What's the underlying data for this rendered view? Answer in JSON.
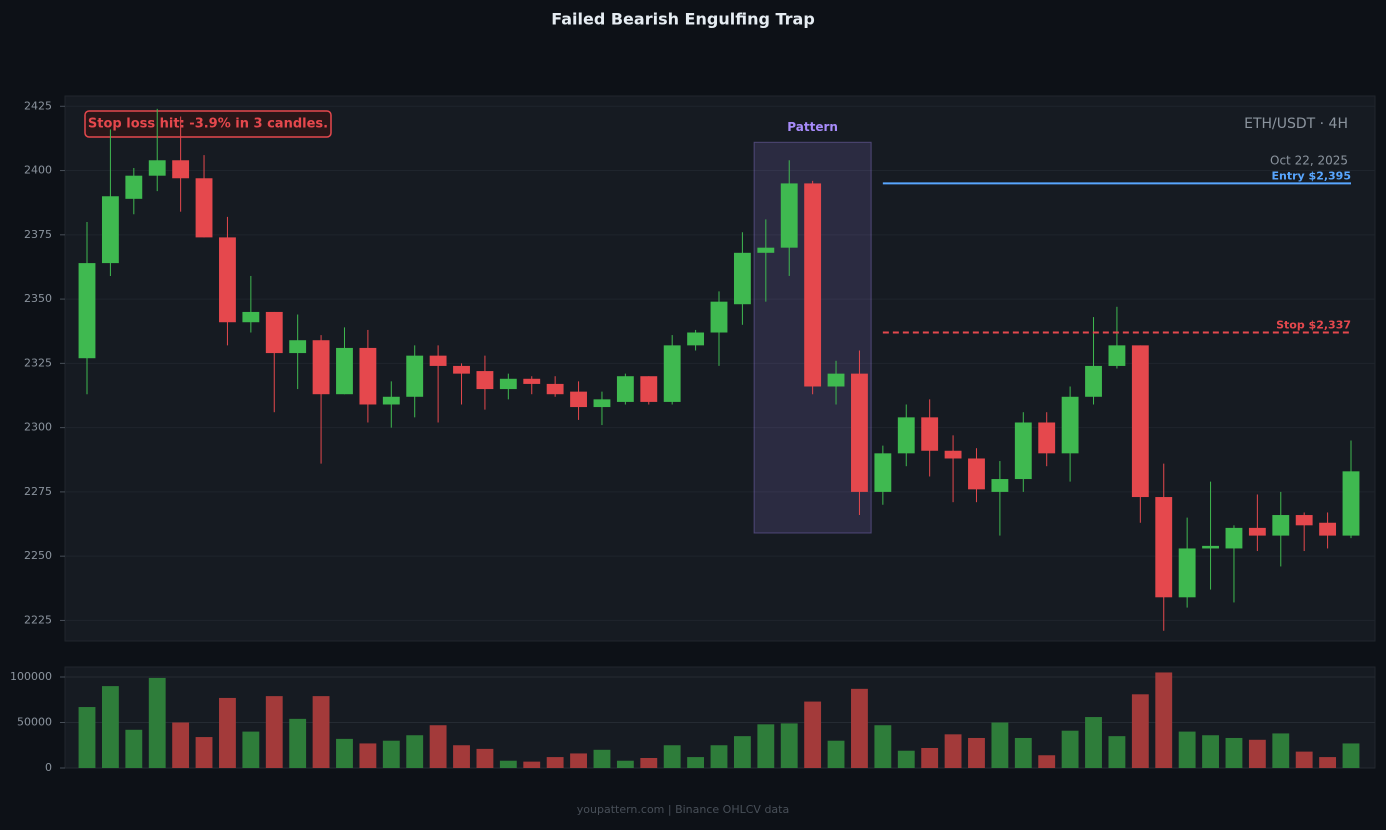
{
  "chart_data": {
    "type": "candlestick",
    "title": "Failed Bearish Engulfing Trap",
    "symbol_label": "ETH/USDT · 4H",
    "date_label": "Oct 22, 2025",
    "annotation": "Stop loss hit: -3.9% in 3 candles.",
    "footer": "youpattern.com | Binance OHLCV data",
    "up_color": "#3fb950",
    "down_color": "#e5484d",
    "volume_up_color": "#2e7d3a",
    "volume_down_color": "#a33a3a",
    "ylim": [
      2217,
      2429
    ],
    "yticks": [
      2225,
      2250,
      2275,
      2300,
      2325,
      2350,
      2375,
      2400,
      2425
    ],
    "grid": true,
    "open": [
      2327,
      2364,
      2389,
      2398,
      2404,
      2397,
      2374,
      2341,
      2345,
      2329,
      2334,
      2313,
      2331,
      2309,
      2312,
      2328,
      2324,
      2322,
      2315,
      2319,
      2317,
      2314,
      2308,
      2310,
      2320,
      2310,
      2332,
      2337,
      2348,
      2368,
      2370,
      2395,
      2316,
      2321,
      2275,
      2290,
      2304,
      2291,
      2288,
      2275,
      2280,
      2302,
      2290,
      2312,
      2324,
      2332,
      2273,
      2234,
      2253,
      2253,
      2261,
      2258,
      2266,
      2263,
      2258
    ],
    "high": [
      2380,
      2416,
      2401,
      2424,
      2421,
      2406,
      2382,
      2359,
      2345,
      2344,
      2336,
      2339,
      2338,
      2318,
      2332,
      2332,
      2325,
      2328,
      2321,
      2320,
      2320,
      2318,
      2314,
      2321,
      2320,
      2336,
      2338,
      2353,
      2376,
      2381,
      2404,
      2396,
      2326,
      2330,
      2293,
      2309,
      2311,
      2297,
      2292,
      2287,
      2306,
      2306,
      2316,
      2343,
      2347,
      2332,
      2286,
      2265,
      2279,
      2262,
      2274,
      2275,
      2267,
      2267,
      2295
    ],
    "low": [
      2313,
      2359,
      2383,
      2392,
      2384,
      2374,
      2332,
      2337,
      2306,
      2315,
      2286,
      2313,
      2302,
      2300,
      2304,
      2302,
      2309,
      2307,
      2311,
      2313,
      2312,
      2303,
      2301,
      2309,
      2309,
      2309,
      2330,
      2324,
      2340,
      2349,
      2359,
      2313,
      2309,
      2266,
      2270,
      2285,
      2281,
      2271,
      2271,
      2258,
      2275,
      2285,
      2279,
      2309,
      2323,
      2263,
      2221,
      2230,
      2237,
      2232,
      2252,
      2246,
      2252,
      2253,
      2257
    ],
    "close": [
      2364,
      2390,
      2398,
      2404,
      2397,
      2374,
      2341,
      2345,
      2329,
      2334,
      2313,
      2331,
      2309,
      2312,
      2328,
      2324,
      2321,
      2315,
      2319,
      2317,
      2313,
      2308,
      2311,
      2320,
      2310,
      2332,
      2337,
      2349,
      2368,
      2370,
      2395,
      2316,
      2321,
      2275,
      2290,
      2304,
      2291,
      2288,
      2276,
      2280,
      2302,
      2290,
      2312,
      2324,
      2332,
      2273,
      2234,
      2253,
      2254,
      2261,
      2258,
      2266,
      2262,
      2258,
      2283
    ],
    "volume": [
      67000,
      90000,
      42000,
      99000,
      50000,
      34000,
      77000,
      40000,
      79000,
      54000,
      79000,
      32000,
      27000,
      30000,
      36000,
      47000,
      25000,
      21000,
      8000,
      7000,
      12000,
      16000,
      20000,
      8000,
      11000,
      25000,
      12000,
      25000,
      35000,
      48000,
      49000,
      73000,
      30000,
      87000,
      47000,
      19000,
      22000,
      37000,
      33000,
      50000,
      33000,
      14000,
      41000,
      56000,
      35000,
      81000,
      105000,
      40000,
      36000,
      33000,
      31000,
      38000,
      18000,
      12000,
      27000
    ],
    "volume_ylim": [
      0,
      111000
    ],
    "volume_yticks": [
      0,
      50000,
      100000
    ],
    "pattern": {
      "label": "Pattern",
      "start": 29,
      "end": 33,
      "top": 2411,
      "bottom": 2259,
      "color": "#a78bfa"
    },
    "levels": [
      {
        "label": "Entry $2,395",
        "value": 2395,
        "start": 34,
        "color": "#58a6ff",
        "style": "solid"
      },
      {
        "label": "Stop $2,337",
        "value": 2337,
        "start": 34,
        "color": "#e5484d",
        "style": "dashed"
      }
    ]
  }
}
